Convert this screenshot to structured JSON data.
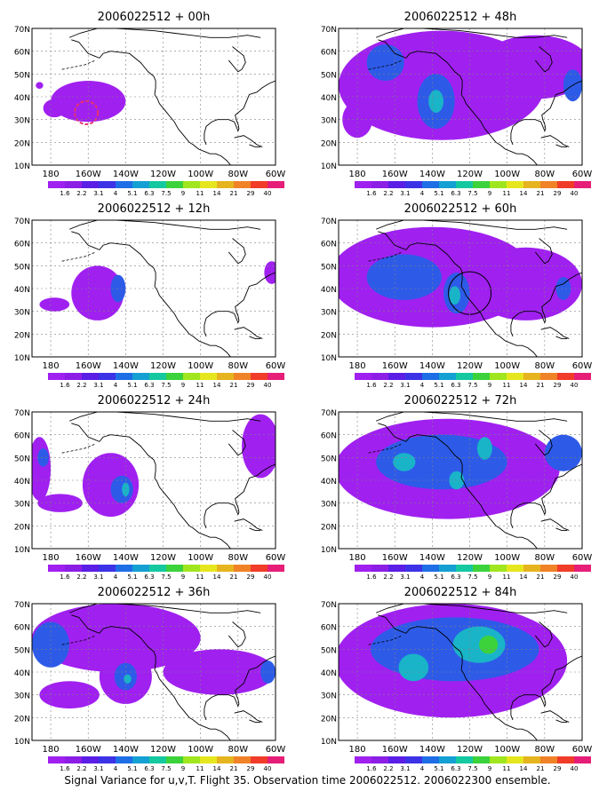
{
  "footer": "Signal Variance for u,v,T. Flight 35. Observation time 2006022512. 2006022300 ensemble.",
  "lat_labels": [
    "70N",
    "60N",
    "50N",
    "40N",
    "30N",
    "20N",
    "10N"
  ],
  "lon_labels": [
    "180",
    "160W",
    "140W",
    "120W",
    "100W",
    "80W",
    "60W"
  ],
  "colorbar": {
    "labels": [
      "1.6",
      "2.2",
      "3.1",
      "4",
      "5.1",
      "6.3",
      "7.5",
      "9",
      "11",
      "14",
      "21",
      "29",
      "40"
    ],
    "colors": [
      "#a020f0",
      "#8c1ee6",
      "#5a1ee6",
      "#3c32e6",
      "#1e6ee6",
      "#14a0d2",
      "#14c8a0",
      "#3cd23c",
      "#a0e61e",
      "#e6e61e",
      "#e6b41e",
      "#f08228",
      "#f03c28",
      "#e61e78"
    ]
  },
  "colors": {
    "low": "#a020f0",
    "mid": "#2d5be8",
    "high": "#19b4c8",
    "peak": "#3cd23c",
    "ring": "#e6326e"
  },
  "panels": [
    {
      "title": "2006022512 + 00h",
      "lead": "00h"
    },
    {
      "title": "2006022512 + 48h",
      "lead": "48h"
    },
    {
      "title": "2006022512 + 12h",
      "lead": "12h"
    },
    {
      "title": "2006022512 + 60h",
      "lead": "60h"
    },
    {
      "title": "2006022512 + 24h",
      "lead": "24h"
    },
    {
      "title": "2006022512 + 72h",
      "lead": "72h"
    },
    {
      "title": "2006022512 + 36h",
      "lead": "36h"
    },
    {
      "title": "2006022512 + 84h",
      "lead": "84h"
    }
  ],
  "fields": {
    "00h": [
      {
        "lon": 200,
        "lat": 38,
        "rx": 20,
        "ry": 9,
        "level": 1
      },
      {
        "lon": 182,
        "lat": 35,
        "rx": 6,
        "ry": 4,
        "level": 1
      },
      {
        "lon": 174,
        "lat": 45,
        "rx": 2,
        "ry": 1.5,
        "level": 1
      }
    ],
    "12h": [
      {
        "lon": 205,
        "lat": 38,
        "rx": 14,
        "ry": 12,
        "level": 1
      },
      {
        "lon": 182,
        "lat": 33,
        "rx": 8,
        "ry": 3,
        "level": 1
      },
      {
        "lon": 216,
        "lat": 40,
        "rx": 4,
        "ry": 6,
        "level": 2
      },
      {
        "lon": 298,
        "lat": 47,
        "rx": 4,
        "ry": 5,
        "level": 1
      }
    ],
    "24h": [
      {
        "lon": 212,
        "lat": 38,
        "rx": 15,
        "ry": 14,
        "level": 1
      },
      {
        "lon": 185,
        "lat": 30,
        "rx": 12,
        "ry": 4,
        "level": 1
      },
      {
        "lon": 174,
        "lat": 45,
        "rx": 6,
        "ry": 14,
        "level": 1
      },
      {
        "lon": 218,
        "lat": 36,
        "rx": 6,
        "ry": 6,
        "level": 2
      },
      {
        "lon": 220,
        "lat": 36,
        "rx": 2,
        "ry": 3,
        "level": 3
      },
      {
        "lon": 292,
        "lat": 55,
        "rx": 10,
        "ry": 14,
        "level": 1
      },
      {
        "lon": 176,
        "lat": 50,
        "rx": 3,
        "ry": 4,
        "level": 2
      }
    ],
    "36h": [
      {
        "lon": 215,
        "lat": 55,
        "rx": 45,
        "ry": 15,
        "level": 1
      },
      {
        "lon": 220,
        "lat": 38,
        "rx": 14,
        "ry": 12,
        "level": 1
      },
      {
        "lon": 270,
        "lat": 40,
        "rx": 30,
        "ry": 10,
        "level": 1
      },
      {
        "lon": 190,
        "lat": 30,
        "rx": 16,
        "ry": 6,
        "level": 1
      },
      {
        "lon": 180,
        "lat": 52,
        "rx": 10,
        "ry": 10,
        "level": 2
      },
      {
        "lon": 220,
        "lat": 38,
        "rx": 6,
        "ry": 6,
        "level": 2
      },
      {
        "lon": 221,
        "lat": 37,
        "rx": 2,
        "ry": 2,
        "level": 3
      },
      {
        "lon": 296,
        "lat": 40,
        "rx": 4,
        "ry": 5,
        "level": 2
      }
    ],
    "48h": [
      {
        "lon": 225,
        "lat": 45,
        "rx": 55,
        "ry": 24,
        "level": 1
      },
      {
        "lon": 275,
        "lat": 53,
        "rx": 30,
        "ry": 14,
        "level": 1
      },
      {
        "lon": 180,
        "lat": 30,
        "rx": 8,
        "ry": 8,
        "level": 1
      },
      {
        "lon": 222,
        "lat": 38,
        "rx": 10,
        "ry": 12,
        "level": 2
      },
      {
        "lon": 195,
        "lat": 55,
        "rx": 10,
        "ry": 8,
        "level": 2
      },
      {
        "lon": 222,
        "lat": 38,
        "rx": 4,
        "ry": 5,
        "level": 3
      },
      {
        "lon": 295,
        "lat": 45,
        "rx": 5,
        "ry": 7,
        "level": 2
      }
    ],
    "60h": [
      {
        "lon": 220,
        "lat": 45,
        "rx": 55,
        "ry": 22,
        "level": 1
      },
      {
        "lon": 270,
        "lat": 42,
        "rx": 30,
        "ry": 16,
        "level": 1
      },
      {
        "lon": 205,
        "lat": 45,
        "rx": 20,
        "ry": 10,
        "level": 2
      },
      {
        "lon": 233,
        "lat": 38,
        "rx": 7,
        "ry": 9,
        "level": 2
      },
      {
        "lon": 232,
        "lat": 37,
        "rx": 3,
        "ry": 4,
        "level": 3
      },
      {
        "lon": 290,
        "lat": 40,
        "rx": 4,
        "ry": 5,
        "level": 2
      }
    ],
    "72h": [
      {
        "lon": 228,
        "lat": 45,
        "rx": 60,
        "ry": 22,
        "level": 1
      },
      {
        "lon": 225,
        "lat": 48,
        "rx": 35,
        "ry": 12,
        "level": 2
      },
      {
        "lon": 205,
        "lat": 48,
        "rx": 6,
        "ry": 4,
        "level": 3
      },
      {
        "lon": 248,
        "lat": 54,
        "rx": 4,
        "ry": 5,
        "level": 3
      },
      {
        "lon": 233,
        "lat": 40,
        "rx": 4,
        "ry": 4,
        "level": 3
      },
      {
        "lon": 290,
        "lat": 52,
        "rx": 10,
        "ry": 8,
        "level": 2
      }
    ],
    "84h": [
      {
        "lon": 230,
        "lat": 45,
        "rx": 62,
        "ry": 25,
        "level": 1
      },
      {
        "lon": 232,
        "lat": 50,
        "rx": 45,
        "ry": 14,
        "level": 2
      },
      {
        "lon": 245,
        "lat": 52,
        "rx": 14,
        "ry": 8,
        "level": 3
      },
      {
        "lon": 250,
        "lat": 52,
        "rx": 5,
        "ry": 4,
        "level": 4
      },
      {
        "lon": 210,
        "lat": 42,
        "rx": 8,
        "ry": 6,
        "level": 3
      }
    ]
  }
}
